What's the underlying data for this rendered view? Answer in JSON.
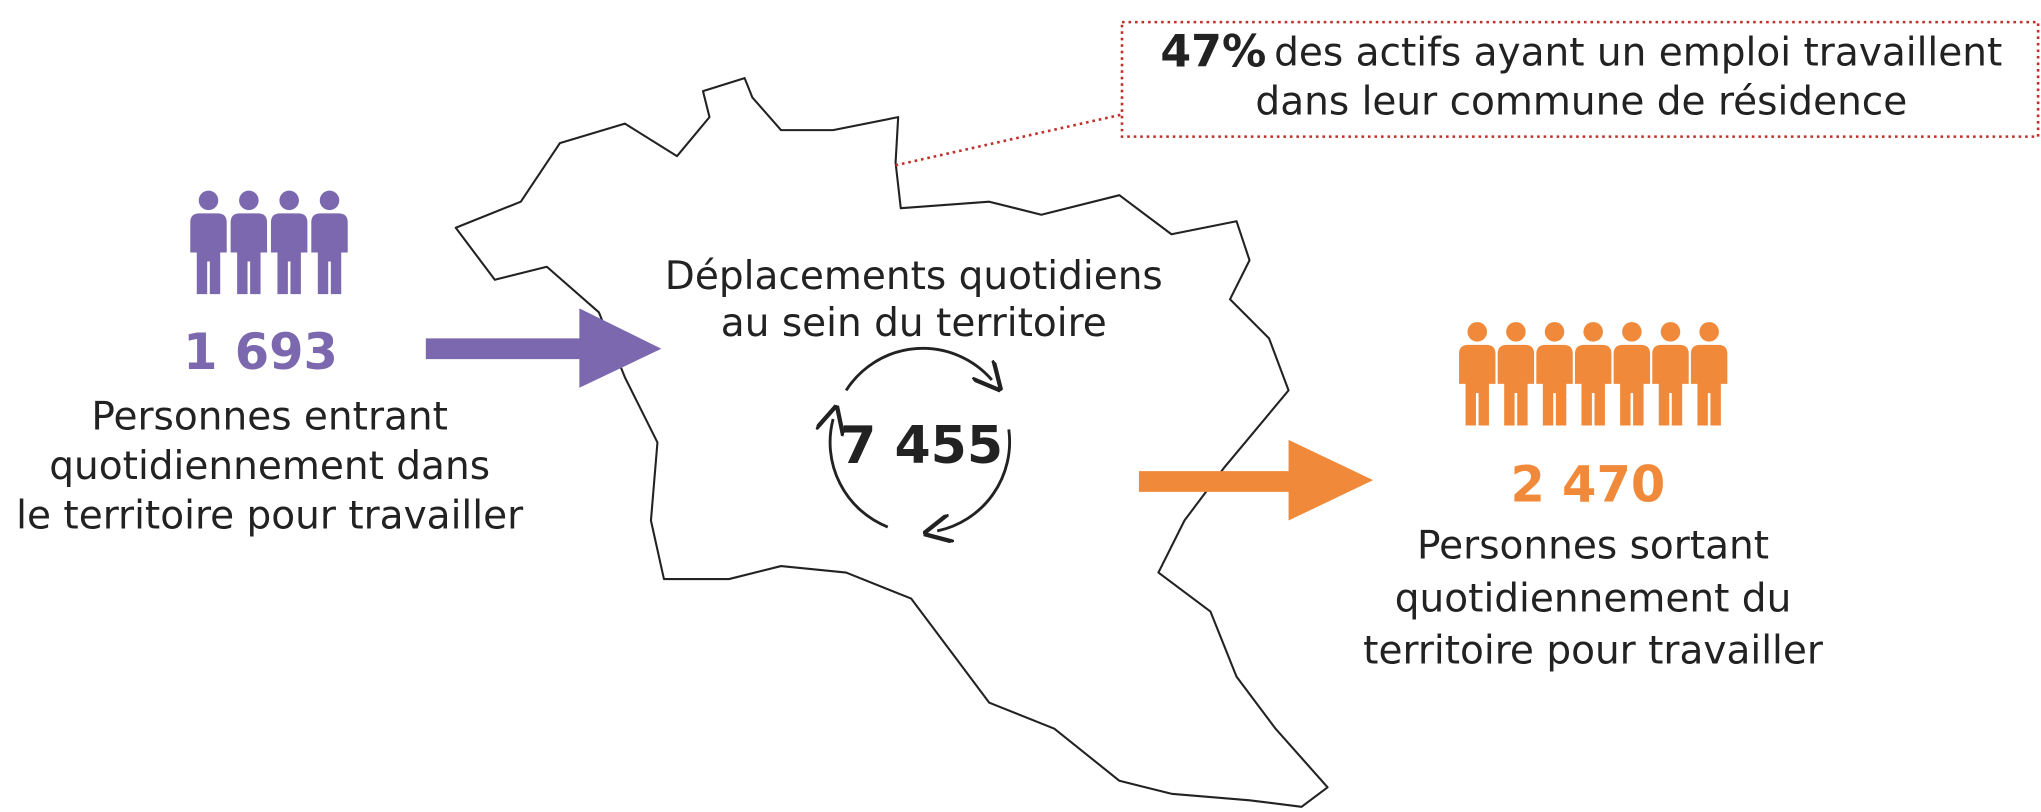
{
  "callout": {
    "value": "47%",
    "lines": [
      "des actifs ayant un emploi travaillent",
      "dans leur commune de résidence"
    ]
  },
  "incoming": {
    "value": "1 693",
    "lines": [
      "Personnes entrant",
      "quotidiennement dans",
      "le territoire pour travailler"
    ]
  },
  "internal": {
    "lines": [
      "Déplacements quotidiens",
      "au sein du territoire"
    ],
    "value": "7 455"
  },
  "outgoing": {
    "value": "2 470",
    "lines": [
      "Personnes sortant",
      "quotidiennement du",
      "territoire pour travailler"
    ]
  }
}
